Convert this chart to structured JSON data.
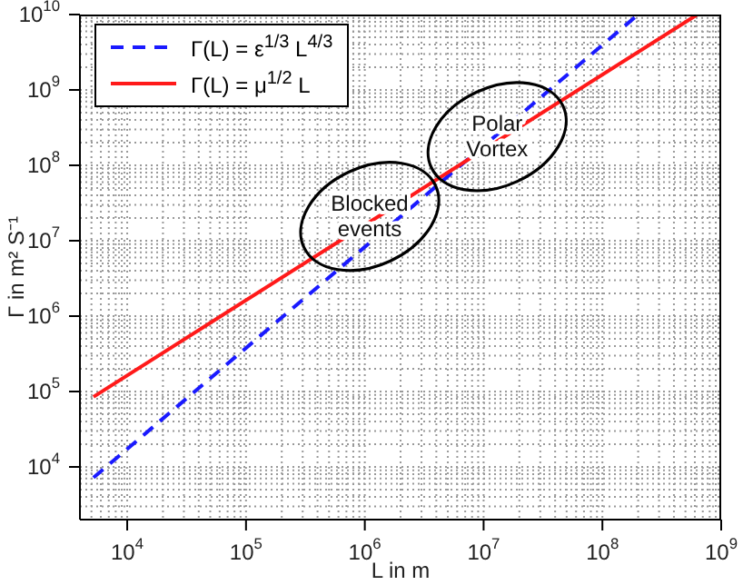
{
  "chart_data": {
    "type": "line",
    "xlabel": "L in m",
    "ylabel": "Γ in m² S⁻¹",
    "log": "xy",
    "grid": true,
    "legend": "top left",
    "marker": "none",
    "xlim": [
      4000,
      1000000000
    ],
    "ylim": [
      2000,
      10000000000
    ],
    "xticks": [
      {
        "value": 10000,
        "label": "10$^{4}$"
      },
      {
        "value": 100000,
        "label": "10$^{5}$"
      },
      {
        "value": 1000000,
        "label": "10$^{6}$"
      },
      {
        "value": 10000000,
        "label": "10$^{7}$"
      },
      {
        "value": 100000000,
        "label": "10$^{8}$"
      },
      {
        "value": 1000000000,
        "label": "10$^{9}$"
      }
    ],
    "yticks": [
      {
        "value": 10000,
        "label": "10$^{4}$"
      },
      {
        "value": 100000,
        "label": "10$^{5}$"
      },
      {
        "value": 1000000,
        "label": "10$^{6}$"
      },
      {
        "value": 10000000,
        "label": "10$^{7}$"
      },
      {
        "value": 100000000,
        "label": "10$^{8}$"
      },
      {
        "value": 1000000000,
        "label": "10$^{9}$"
      },
      {
        "value": 10000000000,
        "label": "10$^{10}$"
      }
    ],
    "series": [
      {
        "name": "Γ(L) = ε$^{1/3}$ L$^{4/3}$",
        "color": "#1a1aff",
        "line_style": "dashed",
        "x": [
          5200,
          200000000
        ],
        "values": [
          7200,
          10000000000
        ]
      },
      {
        "name": "Γ(L) = μ$^{1/2}$ L",
        "color": "#ff1a1a",
        "line_style": "solid",
        "x": [
          5200,
          630000000
        ],
        "values": [
          85000,
          10000000000
        ]
      }
    ],
    "annotations": [
      {
        "text": "Blocked events",
        "x": 1100000,
        "y": 21000000
      },
      {
        "text": "Polar Vortex",
        "x": 13000000,
        "y": 240000000
      }
    ]
  }
}
